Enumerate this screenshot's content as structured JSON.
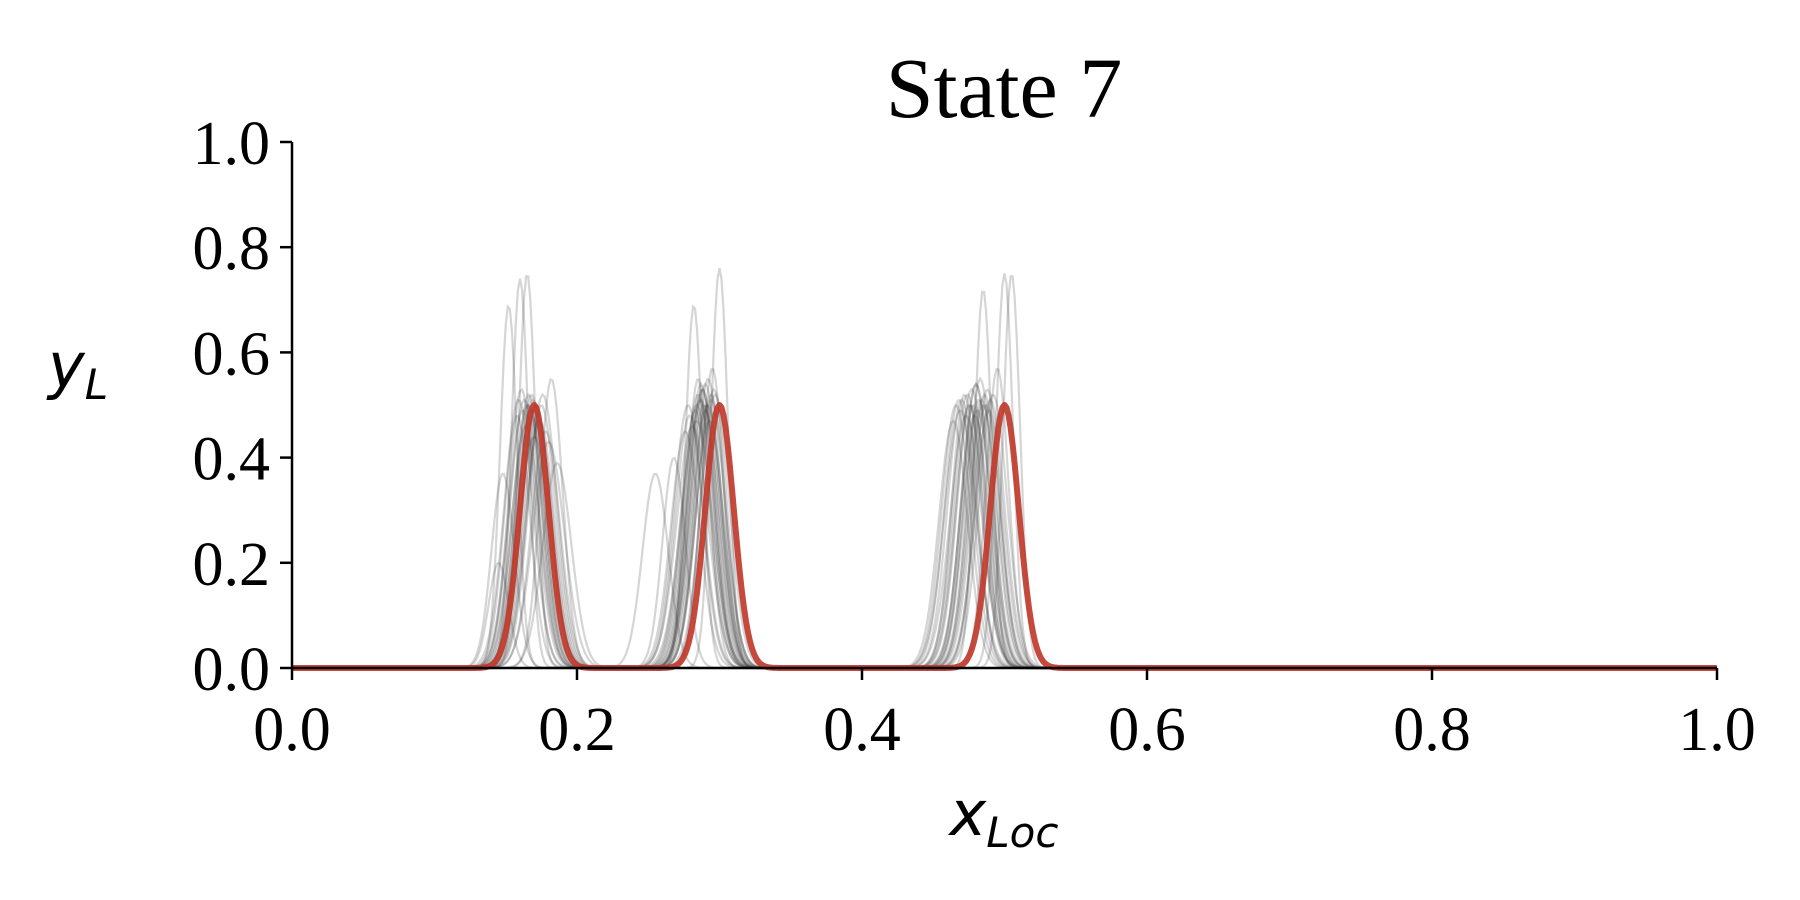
{
  "chart_data": {
    "type": "line",
    "title": "State 7",
    "xlabel": {
      "main": "x",
      "sub": "Loc"
    },
    "ylabel": {
      "main": "y",
      "sub": "L"
    },
    "xlim": [
      0.0,
      1.0
    ],
    "ylim": [
      0.0,
      1.0
    ],
    "x_ticks": [
      "0.0",
      "0.2",
      "0.4",
      "0.6",
      "0.8",
      "1.0"
    ],
    "y_ticks": [
      "0.0",
      "0.2",
      "0.4",
      "0.6",
      "0.8",
      "1.0"
    ],
    "grid": false,
    "legend": "none",
    "reference": {
      "color": "#c0392b",
      "peaks": [
        {
          "center": 0.17,
          "amplitude": 0.5,
          "width": 0.01
        },
        {
          "center": 0.3,
          "amplitude": 0.5,
          "width": 0.01
        },
        {
          "center": 0.5,
          "amplitude": 0.5,
          "width": 0.01
        }
      ]
    },
    "samples": {
      "color": "#404040",
      "curves": [
        {
          "peaks": [
            {
              "center": 0.152,
              "amplitude": 0.69,
              "width": 0.006
            },
            {
              "center": 0.285,
              "amplitude": 0.55,
              "width": 0.008
            },
            {
              "center": 0.478,
              "amplitude": 0.5,
              "width": 0.009
            }
          ]
        },
        {
          "peaks": [
            {
              "center": 0.165,
              "amplitude": 0.75,
              "width": 0.006
            },
            {
              "center": 0.3,
              "amplitude": 0.76,
              "width": 0.006
            },
            {
              "center": 0.5,
              "amplitude": 0.75,
              "width": 0.006
            }
          ]
        },
        {
          "peaks": [
            {
              "center": 0.16,
              "amplitude": 0.74,
              "width": 0.006
            },
            {
              "center": 0.282,
              "amplitude": 0.69,
              "width": 0.006
            },
            {
              "center": 0.485,
              "amplitude": 0.72,
              "width": 0.006
            }
          ]
        },
        {
          "peaks": [
            {
              "center": 0.148,
              "amplitude": 0.37,
              "width": 0.008
            },
            {
              "center": 0.255,
              "amplitude": 0.37,
              "width": 0.009
            },
            {
              "center": 0.505,
              "amplitude": 0.75,
              "width": 0.006
            }
          ]
        },
        {
          "peaks": [
            {
              "center": 0.182,
              "amplitude": 0.55,
              "width": 0.008
            },
            {
              "center": 0.295,
              "amplitude": 0.57,
              "width": 0.008
            },
            {
              "center": 0.495,
              "amplitude": 0.57,
              "width": 0.008
            }
          ]
        },
        {
          "peaks": [
            {
              "center": 0.145,
              "amplitude": 0.2,
              "width": 0.007
            },
            {
              "center": 0.268,
              "amplitude": 0.4,
              "width": 0.008
            },
            {
              "center": 0.472,
              "amplitude": 0.52,
              "width": 0.009
            }
          ]
        },
        {
          "peaks": [
            {
              "center": 0.158,
              "amplitude": 0.48,
              "width": 0.009
            },
            {
              "center": 0.288,
              "amplitude": 0.53,
              "width": 0.009
            },
            {
              "center": 0.48,
              "amplitude": 0.54,
              "width": 0.01
            }
          ]
        },
        {
          "peaks": [
            {
              "center": 0.163,
              "amplitude": 0.51,
              "width": 0.01
            },
            {
              "center": 0.291,
              "amplitude": 0.5,
              "width": 0.01
            },
            {
              "center": 0.486,
              "amplitude": 0.52,
              "width": 0.01
            }
          ]
        },
        {
          "peaks": [
            {
              "center": 0.167,
              "amplitude": 0.49,
              "width": 0.01
            },
            {
              "center": 0.294,
              "amplitude": 0.52,
              "width": 0.01
            },
            {
              "center": 0.49,
              "amplitude": 0.51,
              "width": 0.01
            }
          ]
        },
        {
          "peaks": [
            {
              "center": 0.171,
              "amplitude": 0.5,
              "width": 0.01
            },
            {
              "center": 0.287,
              "amplitude": 0.51,
              "width": 0.01
            },
            {
              "center": 0.476,
              "amplitude": 0.5,
              "width": 0.01
            }
          ]
        },
        {
          "peaks": [
            {
              "center": 0.174,
              "amplitude": 0.47,
              "width": 0.01
            },
            {
              "center": 0.283,
              "amplitude": 0.49,
              "width": 0.01
            },
            {
              "center": 0.47,
              "amplitude": 0.51,
              "width": 0.01
            }
          ]
        },
        {
          "peaks": [
            {
              "center": 0.168,
              "amplitude": 0.52,
              "width": 0.009
            },
            {
              "center": 0.296,
              "amplitude": 0.53,
              "width": 0.009
            },
            {
              "center": 0.488,
              "amplitude": 0.53,
              "width": 0.009
            }
          ]
        },
        {
          "peaks": [
            {
              "center": 0.178,
              "amplitude": 0.45,
              "width": 0.01
            },
            {
              "center": 0.279,
              "amplitude": 0.48,
              "width": 0.01
            },
            {
              "center": 0.466,
              "amplitude": 0.5,
              "width": 0.01
            }
          ]
        },
        {
          "peaks": [
            {
              "center": 0.161,
              "amplitude": 0.53,
              "width": 0.009
            },
            {
              "center": 0.292,
              "amplitude": 0.55,
              "width": 0.009
            },
            {
              "center": 0.483,
              "amplitude": 0.55,
              "width": 0.009
            }
          ]
        },
        {
          "peaks": [
            {
              "center": 0.166,
              "amplitude": 0.5,
              "width": 0.01
            },
            {
              "center": 0.289,
              "amplitude": 0.5,
              "width": 0.01
            },
            {
              "center": 0.481,
              "amplitude": 0.49,
              "width": 0.01
            }
          ]
        },
        {
          "peaks": [
            {
              "center": 0.172,
              "amplitude": 0.48,
              "width": 0.01
            },
            {
              "center": 0.285,
              "amplitude": 0.52,
              "width": 0.01
            },
            {
              "center": 0.474,
              "amplitude": 0.52,
              "width": 0.01
            }
          ]
        },
        {
          "peaks": [
            {
              "center": 0.186,
              "amplitude": 0.39,
              "width": 0.01
            },
            {
              "center": 0.276,
              "amplitude": 0.45,
              "width": 0.01
            },
            {
              "center": 0.464,
              "amplitude": 0.47,
              "width": 0.01
            }
          ]
        },
        {
          "peaks": [
            {
              "center": 0.169,
              "amplitude": 0.51,
              "width": 0.01
            },
            {
              "center": 0.29,
              "amplitude": 0.54,
              "width": 0.01
            },
            {
              "center": 0.484,
              "amplitude": 0.51,
              "width": 0.01
            }
          ]
        },
        {
          "peaks": [
            {
              "center": 0.164,
              "amplitude": 0.46,
              "width": 0.01
            },
            {
              "center": 0.293,
              "amplitude": 0.47,
              "width": 0.01
            },
            {
              "center": 0.479,
              "amplitude": 0.48,
              "width": 0.01
            }
          ]
        },
        {
          "peaks": [
            {
              "center": 0.175,
              "amplitude": 0.5,
              "width": 0.01
            },
            {
              "center": 0.286,
              "amplitude": 0.51,
              "width": 0.01
            },
            {
              "center": 0.487,
              "amplitude": 0.5,
              "width": 0.01
            }
          ]
        },
        {
          "peaks": [
            {
              "center": 0.162,
              "amplitude": 0.49,
              "width": 0.01
            },
            {
              "center": 0.284,
              "amplitude": 0.5,
              "width": 0.01
            },
            {
              "center": 0.477,
              "amplitude": 0.53,
              "width": 0.01
            }
          ]
        },
        {
          "peaks": [
            {
              "center": 0.17,
              "amplitude": 0.44,
              "width": 0.011
            },
            {
              "center": 0.281,
              "amplitude": 0.46,
              "width": 0.011
            },
            {
              "center": 0.469,
              "amplitude": 0.49,
              "width": 0.011
            }
          ]
        },
        {
          "peaks": [
            {
              "center": 0.176,
              "amplitude": 0.52,
              "width": 0.01
            },
            {
              "center": 0.297,
              "amplitude": 0.52,
              "width": 0.01
            },
            {
              "center": 0.492,
              "amplitude": 0.52,
              "width": 0.01
            }
          ]
        },
        {
          "peaks": [
            {
              "center": 0.165,
              "amplitude": 0.5,
              "width": 0.01
            },
            {
              "center": 0.288,
              "amplitude": 0.53,
              "width": 0.01
            },
            {
              "center": 0.482,
              "amplitude": 0.51,
              "width": 0.01
            }
          ]
        },
        {
          "peaks": [
            {
              "center": 0.173,
              "amplitude": 0.47,
              "width": 0.01
            },
            {
              "center": 0.29,
              "amplitude": 0.49,
              "width": 0.01
            },
            {
              "center": 0.475,
              "amplitude": 0.5,
              "width": 0.01
            }
          ]
        },
        {
          "peaks": [
            {
              "center": 0.159,
              "amplitude": 0.51,
              "width": 0.01
            },
            {
              "center": 0.278,
              "amplitude": 0.5,
              "width": 0.01
            },
            {
              "center": 0.468,
              "amplitude": 0.51,
              "width": 0.01
            }
          ]
        },
        {
          "peaks": [
            {
              "center": 0.168,
              "amplitude": 0.49,
              "width": 0.01
            },
            {
              "center": 0.294,
              "amplitude": 0.51,
              "width": 0.01
            },
            {
              "center": 0.489,
              "amplitude": 0.49,
              "width": 0.01
            }
          ]
        },
        {
          "peaks": [
            {
              "center": 0.18,
              "amplitude": 0.43,
              "width": 0.011
            },
            {
              "center": 0.284,
              "amplitude": 0.47,
              "width": 0.011
            },
            {
              "center": 0.473,
              "amplitude": 0.48,
              "width": 0.011
            }
          ]
        },
        {
          "peaks": [
            {
              "center": 0.166,
              "amplitude": 0.52,
              "width": 0.009
            },
            {
              "center": 0.287,
              "amplitude": 0.54,
              "width": 0.009
            },
            {
              "center": 0.48,
              "amplitude": 0.54,
              "width": 0.009
            }
          ]
        },
        {
          "peaks": [
            {
              "center": 0.171,
              "amplitude": 0.5,
              "width": 0.01
            },
            {
              "center": 0.292,
              "amplitude": 0.5,
              "width": 0.01
            },
            {
              "center": 0.485,
              "amplitude": 0.5,
              "width": 0.01
            }
          ]
        }
      ]
    }
  }
}
